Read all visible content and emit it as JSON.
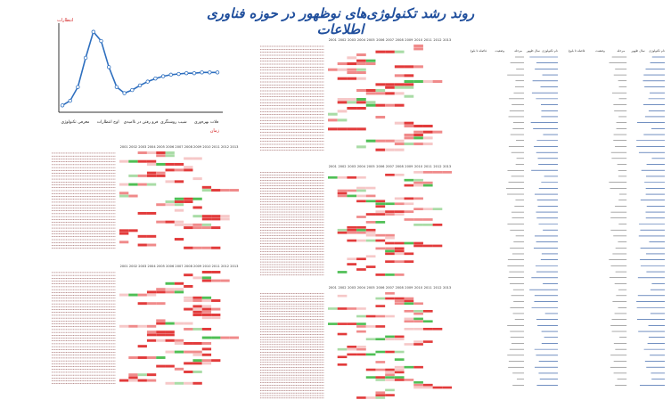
{
  "page": {
    "title": "روند رشد تکنولوژی‌های نوظهور در حوزه فناوری اطلاعات"
  },
  "colors": {
    "strong": "#e23b3b",
    "medium": "#f08a8a",
    "light": "#f6c8c8",
    "green": "#4fbf55",
    "lightgreen": "#a9dca6",
    "blue_title": "#1f4e9c",
    "curve": "#2e6fbf",
    "sections": "#d31f1f"
  },
  "hype": {
    "y_axis_label": "انتظارات",
    "x_axis_label": "زمان",
    "phases": [
      "معرفی تکنولوژی",
      "اوج انتظارات",
      "فرو رفتن در ناامیدی",
      "شیب روشنگری",
      "فلات بهره‌وری"
    ]
  },
  "chart_data": [
    {
      "type": "line",
      "title": "",
      "x": [
        0,
        1,
        2,
        3,
        4,
        5,
        6,
        7,
        8,
        9,
        10,
        11,
        12,
        13,
        14,
        15,
        16,
        17,
        18,
        19,
        20
      ],
      "series": [
        {
          "values": [
            2,
            8,
            26,
            64,
            98,
            86,
            52,
            26,
            18,
            22,
            28,
            33,
            37,
            40,
            42,
            43,
            44,
            44,
            45,
            45,
            45
          ]
        }
      ]
    },
    {
      "type": "heatmap",
      "title": "",
      "years": [
        "2001",
        "2002",
        "2003",
        "2004",
        "2005",
        "2006",
        "2007",
        "2008",
        "2009",
        "2010",
        "2011",
        "2012",
        "2013"
      ],
      "rows": 34,
      "levels": {
        "0": "none",
        "1": "light",
        "2": "medium",
        "3": "strong",
        "4": "green",
        "5": "lightgreen"
      }
    },
    {
      "type": "heatmap",
      "title": "",
      "years": [
        "2001",
        "2002",
        "2003",
        "2004",
        "2005",
        "2006",
        "2007",
        "2008",
        "2009",
        "2010",
        "2011",
        "2012",
        "2013"
      ],
      "rows": 40
    },
    {
      "type": "heatmap",
      "title": "",
      "years": [
        "2001",
        "2002",
        "2003",
        "2004",
        "2005",
        "2006",
        "2007",
        "2008",
        "2009",
        "2010",
        "2011",
        "2012",
        "2013"
      ],
      "rows": 36
    },
    {
      "type": "heatmap",
      "title": "",
      "years": [
        "2001",
        "2002",
        "2003",
        "2004",
        "2005",
        "2006",
        "2007",
        "2008",
        "2009",
        "2010",
        "2011",
        "2012",
        "2013"
      ],
      "rows": 40
    },
    {
      "type": "heatmap",
      "title": "",
      "years": [
        "2001",
        "2002",
        "2003",
        "2004",
        "2005",
        "2006",
        "2007",
        "2008",
        "2009",
        "2010",
        "2011",
        "2012",
        "2013"
      ],
      "rows": 42
    },
    {
      "type": "table",
      "title": "",
      "columns": [
        "نام تکنولوژی",
        "سال ظهور",
        "مرحله",
        "وضعیت",
        "فاصله تا بلوغ"
      ],
      "rows": 56
    },
    {
      "type": "table",
      "title": "",
      "columns": [
        "نام تکنولوژی",
        "سال ظهور",
        "مرحله",
        "وضعیت",
        "فاصله تا بلوغ"
      ],
      "rows": 56
    }
  ]
}
